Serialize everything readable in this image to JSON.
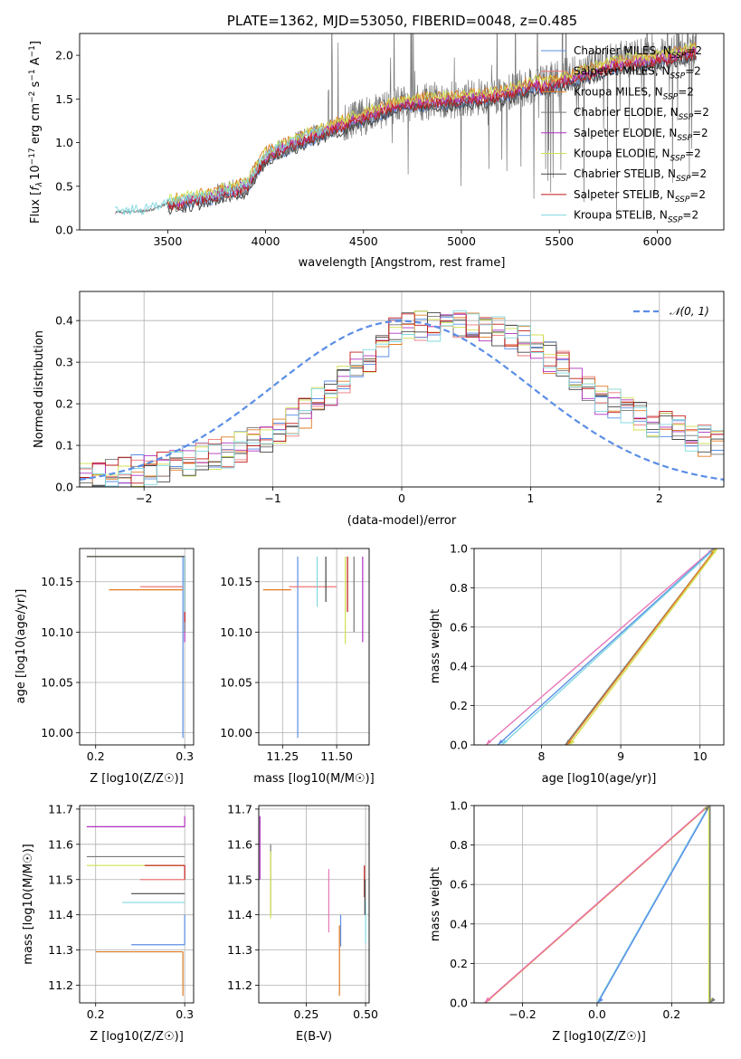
{
  "figure": {
    "title": "PLATE=1362, MJD=53050, FIBERID=0048, z=0.485",
    "colors": {
      "Chabrier MILES": "#5b8ee6",
      "Salpeter MILES": "#ee7777",
      "Kroupa MILES": "#e07b20",
      "Chabrier ELODIE": "#777777",
      "Salpeter ELODIE": "#b030c0",
      "Kroupa ELODIE": "#d0e050",
      "Chabrier STELIB": "#444444",
      "Salpeter STELIB": "#c01818",
      "Kroupa STELIB": "#80d8e0",
      "pink": "#e878b8",
      "normal": "#5b8ee6"
    }
  },
  "legend_spectrum": {
    "entries": [
      {
        "model": "Chabrier MILES",
        "label": "Chabrier MILES, N",
        "sub": "SSP",
        "suffix": "=2"
      },
      {
        "model": "Salpeter MILES",
        "label": "Salpeter MILES, N",
        "sub": "SSP",
        "suffix": "=2"
      },
      {
        "model": "Kroupa MILES",
        "label": "Kroupa MILES, N",
        "sub": "SSP",
        "suffix": "=2"
      },
      {
        "model": "Chabrier ELODIE",
        "label": "Chabrier ELODIE, N",
        "sub": "SSP",
        "suffix": "=2"
      },
      {
        "model": "Salpeter ELODIE",
        "label": "Salpeter ELODIE, N",
        "sub": "SSP",
        "suffix": "=2"
      },
      {
        "model": "Kroupa ELODIE",
        "label": "Kroupa ELODIE, N",
        "sub": "SSP",
        "suffix": "=2"
      },
      {
        "model": "Chabrier STELIB",
        "label": "Chabrier STELIB, N",
        "sub": "SSP",
        "suffix": "=2"
      },
      {
        "model": "Salpeter STELIB",
        "label": "Salpeter STELIB, N",
        "sub": "SSP",
        "suffix": "=2"
      },
      {
        "model": "Kroupa STELIB",
        "label": "Kroupa STELIB, N",
        "sub": "SSP",
        "suffix": "=2"
      }
    ]
  },
  "legend_residual": {
    "label": "𝒩(0, 1)"
  },
  "chart_data": [
    {
      "id": "spectrum",
      "type": "line",
      "xlabel": "wavelength [Angstrom, rest frame]",
      "ylabel": "Flux [f_λ 10^-17 erg cm^-2 s^-1 A^-1]",
      "ylabel_parts": {
        "a": "Flux [",
        "b": "f",
        "c": "λ",
        "d": "10",
        "e": "−17",
        "f": " erg cm",
        "g": "−2",
        "h": " s",
        "i": "−1",
        "j": " A",
        "k": "−1",
        "l": "]"
      },
      "xlim": [
        3050,
        6340
      ],
      "ylim": [
        0,
        2.25
      ],
      "xticks": [
        3500,
        4000,
        4500,
        5000,
        5500,
        6000
      ],
      "yticks": [
        0.0,
        0.5,
        1.0,
        1.5,
        2.0
      ],
      "xtick_labels": [
        "3500",
        "4000",
        "4500",
        "5000",
        "5500",
        "6000"
      ],
      "ytick_labels": [
        "0.0",
        "0.5",
        "1.0",
        "1.5",
        "2.0"
      ],
      "data_range": [
        3230,
        6200
      ],
      "model_range": [
        3500,
        6200
      ],
      "continuum_knots": {
        "x": [
          3230,
          3400,
          3500,
          3700,
          3900,
          4000,
          4200,
          4500,
          4700,
          5000,
          5200,
          5500,
          5800,
          6000,
          6200
        ],
        "y": [
          0.2,
          0.22,
          0.3,
          0.38,
          0.5,
          0.85,
          1.05,
          1.3,
          1.45,
          1.5,
          1.55,
          1.75,
          1.95,
          2.0,
          2.1
        ]
      }
    },
    {
      "id": "residuals",
      "type": "step",
      "xlabel": "(data-model)/error",
      "ylabel": "Normed distribution",
      "xlim": [
        -2.5,
        2.5
      ],
      "ylim": [
        0,
        0.47
      ],
      "xticks": [
        -2,
        -1,
        0,
        1,
        2
      ],
      "yticks": [
        0.0,
        0.1,
        0.2,
        0.3,
        0.4
      ],
      "xtick_labels": [
        "−2",
        "−1",
        "0",
        "1",
        "2"
      ],
      "ytick_labels": [
        "0.0",
        "0.1",
        "0.2",
        "0.3",
        "0.4"
      ],
      "bin_width": 0.1,
      "reference": {
        "name": "𝒩(0, 1)",
        "mean": 0,
        "sigma": 1
      },
      "histogram_envelope": {
        "x": [
          -2.5,
          -2.0,
          -1.5,
          -1.0,
          -0.5,
          -0.2,
          0.0,
          0.3,
          0.6,
          0.9,
          1.2,
          1.5,
          1.9,
          2.2,
          2.5
        ],
        "y": [
          0.02,
          0.04,
          0.07,
          0.12,
          0.24,
          0.33,
          0.38,
          0.39,
          0.39,
          0.36,
          0.3,
          0.22,
          0.16,
          0.13,
          0.09
        ]
      }
    },
    {
      "id": "age_vs_Z",
      "type": "scatter-errorbar",
      "xlabel": "Z [log10(Z/Z☉)]",
      "ylabel": "age [log10(age/yr)]",
      "xlim": [
        0.182,
        0.31
      ],
      "ylim": [
        9.988,
        10.183
      ],
      "xticks": [
        0.2,
        0.3
      ],
      "yticks": [
        10.0,
        10.05,
        10.1,
        10.15
      ],
      "xtick_labels": [
        "0.2",
        "0.3"
      ],
      "ytick_labels": [
        "10.00",
        "10.05",
        "10.10",
        "10.15"
      ],
      "points": [
        {
          "model": "Chabrier MILES",
          "x": 0.298,
          "y": 10.175,
          "x0": 0.298,
          "y0": 9.995
        },
        {
          "model": "Kroupa MILES",
          "x": 0.298,
          "y": 10.142,
          "x0": 0.215,
          "y0": 10.142
        },
        {
          "model": "Salpeter MILES",
          "x": 0.298,
          "y": 10.145,
          "x0": 0.25,
          "y0": 10.145
        },
        {
          "model": "Kroupa ELODIE",
          "x": 0.3,
          "y": 10.175,
          "x0": 0.19,
          "y0": 10.175
        },
        {
          "model": "Salpeter ELODIE",
          "x": 0.3,
          "y": 10.175,
          "x0": 0.3,
          "y0": 10.09
        },
        {
          "model": "Chabrier ELODIE",
          "x": 0.3,
          "y": 10.175,
          "x0": 0.3,
          "y0": 10.1
        },
        {
          "model": "Chabrier STELIB",
          "x": 0.3,
          "y": 10.175,
          "x0": 0.19,
          "y0": 10.175
        },
        {
          "model": "Salpeter STELIB",
          "x": 0.3,
          "y": 10.175,
          "x0": 0.3,
          "y0": 10.11
        },
        {
          "model": "Kroupa STELIB",
          "x": 0.3,
          "y": 10.175,
          "x0": 0.3,
          "y0": 10.12
        }
      ]
    },
    {
      "id": "age_vs_mass",
      "type": "scatter-errorbar",
      "xlabel": "mass [log10(M/M☉)]",
      "ylabel": "",
      "xlim": [
        11.14,
        11.65
      ],
      "ylim": [
        9.988,
        10.183
      ],
      "xticks": [
        11.25,
        11.5
      ],
      "yticks": [
        10.0,
        10.05,
        10.1,
        10.15
      ],
      "xtick_labels": [
        "11.25",
        "11.50"
      ],
      "ytick_labels": [
        "10.00",
        "10.05",
        "10.10",
        "10.15"
      ],
      "points": [
        {
          "model": "Chabrier MILES",
          "x": 11.32,
          "y": 10.175,
          "x0": 11.32,
          "y0": 9.995
        },
        {
          "model": "Kroupa MILES",
          "x": 11.29,
          "y": 10.142,
          "x0": 11.16,
          "y0": 10.142
        },
        {
          "model": "Salpeter MILES",
          "x": 11.5,
          "y": 10.145,
          "x0": 11.28,
          "y0": 10.145
        },
        {
          "model": "Kroupa ELODIE",
          "x": 11.54,
          "y": 10.175,
          "x0": 11.54,
          "y0": 10.088
        },
        {
          "model": "Salpeter ELODIE",
          "x": 11.62,
          "y": 10.175,
          "x0": 11.62,
          "y0": 10.09
        },
        {
          "model": "Chabrier ELODIE",
          "x": 11.58,
          "y": 10.175,
          "x0": 11.58,
          "y0": 10.1
        },
        {
          "model": "Chabrier STELIB",
          "x": 11.45,
          "y": 10.175,
          "x0": 11.45,
          "y0": 10.13
        },
        {
          "model": "Salpeter STELIB",
          "x": 11.55,
          "y": 10.175,
          "x0": 11.55,
          "y0": 10.12
        },
        {
          "model": "Kroupa STELIB",
          "x": 11.41,
          "y": 10.175,
          "x0": 11.41,
          "y0": 10.125
        }
      ]
    },
    {
      "id": "cumulative_age",
      "type": "line",
      "xlabel": "age [log10(age/yr)]",
      "ylabel": "mass weight",
      "xlim": [
        7.15,
        10.3
      ],
      "ylim": [
        0,
        1.0
      ],
      "xticks": [
        8,
        9,
        10
      ],
      "yticks": [
        0.0,
        0.2,
        0.4,
        0.6,
        0.8,
        1.0
      ],
      "xtick_labels": [
        "8",
        "9",
        "10"
      ],
      "ytick_labels": [
        "0.0",
        "0.2",
        "0.4",
        "0.6",
        "0.8",
        "1.0"
      ],
      "series": [
        {
          "model": "pink",
          "x": [
            7.3,
            10.17
          ],
          "y": [
            0,
            1
          ]
        },
        {
          "model": "Chabrier MILES",
          "x": [
            7.45,
            10.18
          ],
          "y": [
            0,
            1
          ]
        },
        {
          "model": "Kroupa STELIB",
          "x": [
            7.5,
            10.19
          ],
          "y": [
            0,
            1
          ]
        },
        {
          "model": "Chabrier ELODIE",
          "x": [
            8.3,
            10.2
          ],
          "y": [
            0,
            1
          ]
        },
        {
          "model": "Kroupa MILES",
          "x": [
            8.32,
            10.2
          ],
          "y": [
            0,
            1
          ]
        },
        {
          "model": "Kroupa ELODIE",
          "x": [
            8.35,
            10.22
          ],
          "y": [
            0,
            1
          ]
        }
      ]
    },
    {
      "id": "mass_vs_Z",
      "type": "scatter-errorbar",
      "xlabel": "Z [log10(Z/Z☉)]",
      "ylabel": "mass [log10(M/M☉)]",
      "xlim": [
        0.182,
        0.31
      ],
      "ylim": [
        11.15,
        11.71
      ],
      "xticks": [
        0.2,
        0.3
      ],
      "yticks": [
        11.2,
        11.3,
        11.4,
        11.5,
        11.6,
        11.7
      ],
      "xtick_labels": [
        "0.2",
        "0.3"
      ],
      "ytick_labels": [
        "11.2",
        "11.3",
        "11.4",
        "11.5",
        "11.6",
        "11.7"
      ],
      "points": [
        {
          "model": "Salpeter ELODIE",
          "x": 0.3,
          "y": 11.65,
          "x0": 0.19,
          "y0": 11.68
        },
        {
          "model": "Chabrier ELODIE",
          "x": 0.3,
          "y": 11.565,
          "x0": 0.19,
          "y0": 11.565
        },
        {
          "model": "Kroupa ELODIE",
          "x": 0.3,
          "y": 11.54,
          "x0": 0.19,
          "y0": 11.54
        },
        {
          "model": "Salpeter STELIB",
          "x": 0.3,
          "y": 11.54,
          "x0": 0.255,
          "y0": 11.5
        },
        {
          "model": "Salpeter MILES",
          "x": 0.3,
          "y": 11.5,
          "x0": 0.25,
          "y0": 11.5
        },
        {
          "model": "Chabrier STELIB",
          "x": 0.3,
          "y": 11.46,
          "x0": 0.24,
          "y0": 11.46
        },
        {
          "model": "Kroupa STELIB",
          "x": 0.3,
          "y": 11.435,
          "x0": 0.23,
          "y0": 11.435
        },
        {
          "model": "Chabrier MILES",
          "x": 0.3,
          "y": 11.315,
          "x0": 0.24,
          "y0": 11.4
        },
        {
          "model": "Kroupa MILES",
          "x": 0.298,
          "y": 11.295,
          "x0": 0.2,
          "y0": 11.17
        }
      ]
    },
    {
      "id": "mass_vs_EBV",
      "type": "scatter-errorbar",
      "xlabel": "E(B-V)",
      "ylabel": "",
      "xlim": [
        0.05,
        0.515
      ],
      "ylim": [
        11.15,
        11.71
      ],
      "xticks": [
        0.25,
        0.5
      ],
      "yticks": [
        11.2,
        11.3,
        11.4,
        11.5,
        11.6,
        11.7
      ],
      "xtick_labels": [
        "0.25",
        "0.50"
      ],
      "ytick_labels": [
        "11.2",
        "11.3",
        "11.4",
        "11.5",
        "11.6",
        "11.7"
      ],
      "points": [
        {
          "model": "Salpeter ELODIE",
          "x": 0.055,
          "y": 11.68,
          "x0": 0.055,
          "y0": 11.5
        },
        {
          "model": "Chabrier ELODIE",
          "x": 0.1,
          "y": 11.6,
          "x0": 0.1,
          "y0": 11.4
        },
        {
          "model": "Kroupa ELODIE",
          "x": 0.1,
          "y": 11.58,
          "x0": 0.1,
          "y0": 11.39
        },
        {
          "model": "pink",
          "x": 0.345,
          "y": 11.53,
          "x0": 0.345,
          "y0": 11.35
        },
        {
          "model": "Chabrier MILES",
          "x": 0.395,
          "y": 11.4,
          "x0": 0.395,
          "y0": 11.31
        },
        {
          "model": "Kroupa MILES",
          "x": 0.39,
          "y": 11.37,
          "x0": 0.39,
          "y0": 11.17
        },
        {
          "model": "Salpeter STELIB",
          "x": 0.495,
          "y": 11.54,
          "x0": 0.495,
          "y0": 11.45
        },
        {
          "model": "Kroupa STELIB",
          "x": 0.5,
          "y": 11.44,
          "x0": 0.5,
          "y0": 11.32
        },
        {
          "model": "Chabrier STELIB",
          "x": 0.497,
          "y": 11.5,
          "x0": 0.497,
          "y0": 11.4
        }
      ]
    },
    {
      "id": "cumulative_Z",
      "type": "line",
      "xlabel": "Z [log10(Z/Z☉)]",
      "ylabel": "mass weight",
      "xlim": [
        -0.33,
        0.34
      ],
      "ylim": [
        0,
        1.0
      ],
      "xticks": [
        -0.2,
        0.0,
        0.2
      ],
      "yticks": [
        0.0,
        0.2,
        0.4,
        0.6,
        0.8,
        1.0
      ],
      "xtick_labels": [
        "−0.2",
        "0.0",
        "0.2"
      ],
      "ytick_labels": [
        "0.0",
        "0.2",
        "0.4",
        "0.6",
        "0.8",
        "1.0"
      ],
      "series": [
        {
          "model": "Kroupa MILES",
          "x": [
            -0.3,
            0.3
          ],
          "y": [
            0,
            1
          ]
        },
        {
          "model": "pink",
          "x": [
            -0.302,
            0.298
          ],
          "y": [
            0,
            1
          ]
        },
        {
          "model": "Kroupa STELIB",
          "x": [
            0.0,
            0.3
          ],
          "y": [
            0,
            1
          ]
        },
        {
          "model": "Chabrier MILES",
          "x": [
            0.002,
            0.302
          ],
          "y": [
            0,
            1
          ]
        },
        {
          "model": "Kroupa ELODIE",
          "x": [
            0.3,
            0.3
          ],
          "y": [
            0,
            1
          ]
        },
        {
          "model": "Chabrier ELODIE",
          "x": [
            0.303,
            0.303
          ],
          "y": [
            0,
            1
          ]
        }
      ]
    }
  ]
}
